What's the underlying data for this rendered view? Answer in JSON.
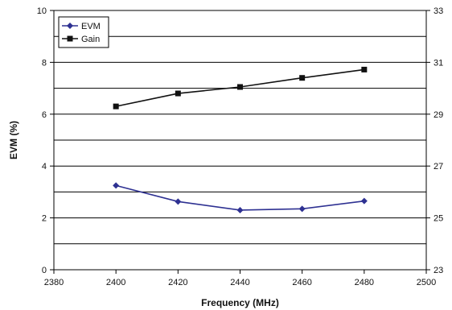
{
  "chart_data": {
    "type": "line",
    "title": "",
    "xlabel": "Frequency (MHz)",
    "ylabel": "EVM (%)",
    "xlim": [
      2380,
      2500
    ],
    "ylim": [
      0,
      10
    ],
    "y2lim": [
      23,
      33
    ],
    "x_ticks": [
      2380,
      2400,
      2420,
      2440,
      2460,
      2480,
      2500
    ],
    "y_ticks": [
      0,
      2,
      4,
      6,
      8,
      10
    ],
    "y2_ticks": [
      23,
      25,
      27,
      29,
      31,
      33
    ],
    "grid": "horizontal",
    "legend_position": "top-left",
    "series": [
      {
        "name": "EVM",
        "axis": "left",
        "marker": "diamond",
        "color": "#2e3192",
        "x": [
          2400,
          2420,
          2440,
          2460,
          2480
        ],
        "y": [
          3.25,
          2.63,
          2.3,
          2.35,
          2.65
        ]
      },
      {
        "name": "Gain",
        "axis": "right",
        "marker": "square",
        "color": "#111111",
        "x": [
          2400,
          2420,
          2440,
          2460,
          2480
        ],
        "y": [
          29.3,
          29.8,
          30.05,
          30.4,
          30.72
        ]
      }
    ]
  }
}
